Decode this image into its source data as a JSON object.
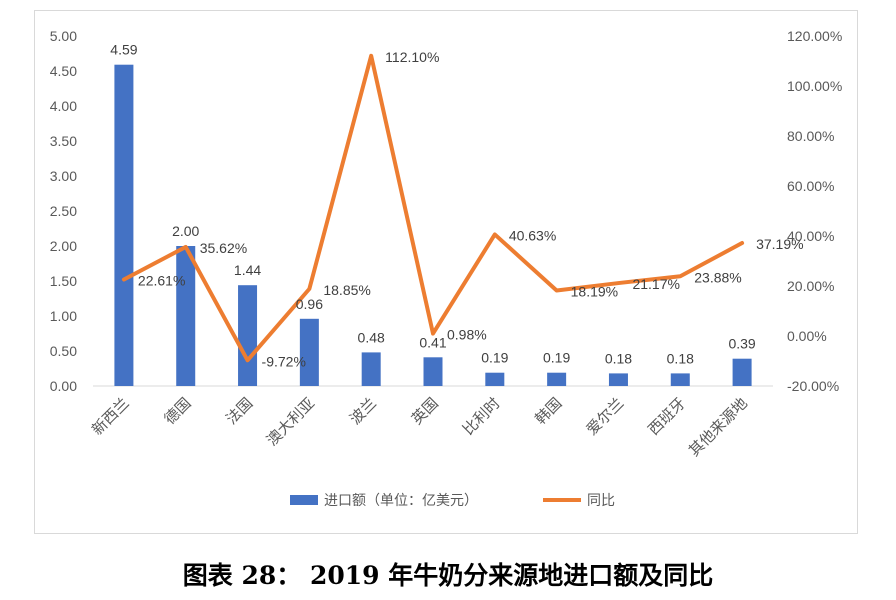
{
  "caption": "图表 28：   2019 年牛奶分来源地进口额及同比",
  "chart_data": {
    "type": "bar",
    "categories": [
      "新西兰",
      "德国",
      "法国",
      "澳大利亚",
      "波兰",
      "英国",
      "比利时",
      "韩国",
      "爱尔兰",
      "西班牙",
      "其他来源地"
    ],
    "series": [
      {
        "name": "进口额（单位：亿美元）",
        "type": "bar",
        "axis": "left",
        "color": "#4472C4",
        "values": [
          4.59,
          2.0,
          1.44,
          0.96,
          0.48,
          0.41,
          0.19,
          0.19,
          0.18,
          0.18,
          0.39
        ],
        "labels": [
          "4.59",
          "2.00",
          "1.44",
          "0.96",
          "0.48",
          "0.41",
          "0.19",
          "0.19",
          "0.18",
          "0.18",
          "0.39"
        ]
      },
      {
        "name": "同比",
        "type": "line",
        "axis": "right",
        "color": "#ED7D31",
        "values": [
          22.61,
          35.62,
          -9.72,
          18.85,
          112.1,
          0.98,
          40.63,
          18.19,
          21.17,
          23.88,
          37.19
        ],
        "labels": [
          "22.61%",
          "35.62%",
          "-9.72%",
          "18.85%",
          "112.10%",
          "0.98%",
          "40.63%",
          "18.19%",
          "21.17%",
          "23.88%",
          "37.19%"
        ]
      }
    ],
    "y_left": {
      "min": 0,
      "max": 5,
      "step": 0.5,
      "ticks": [
        "0.00",
        "0.50",
        "1.00",
        "1.50",
        "2.00",
        "2.50",
        "3.00",
        "3.50",
        "4.00",
        "4.50",
        "5.00"
      ]
    },
    "y_right": {
      "min": -20,
      "max": 120,
      "step": 20,
      "ticks": [
        "-20.00%",
        "0.00%",
        "20.00%",
        "40.00%",
        "60.00%",
        "80.00%",
        "100.00%",
        "120.00%"
      ]
    },
    "grid": false,
    "legend_position": "bottom"
  }
}
